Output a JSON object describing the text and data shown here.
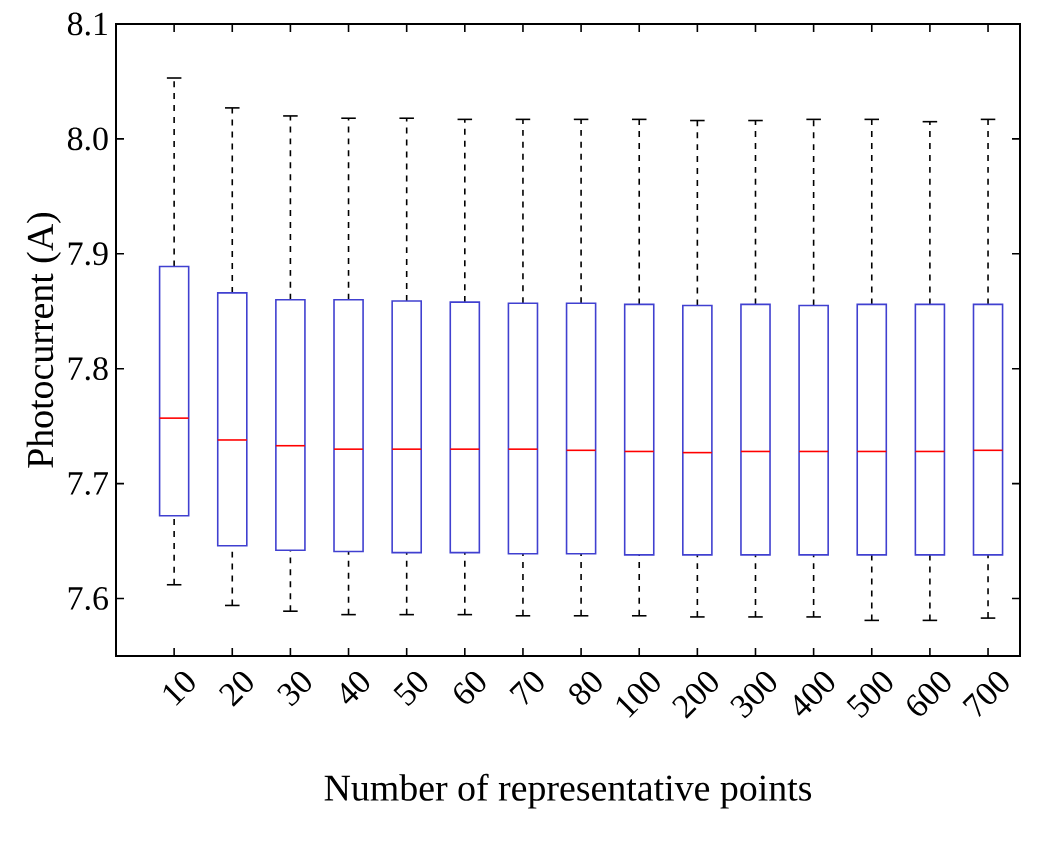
{
  "chart_data": {
    "type": "box",
    "xlabel": "Number of representative points",
    "ylabel": "Photocurrent (A)",
    "categories": [
      "10",
      "20",
      "30",
      "40",
      "50",
      "60",
      "70",
      "80",
      "100",
      "200",
      "300",
      "400",
      "500",
      "600",
      "700"
    ],
    "ylim": [
      7.55,
      8.1
    ],
    "yticks": [
      7.6,
      7.7,
      7.8,
      7.9,
      {
        "value": 8.0,
        "label": "8.0"
      },
      8.1
    ],
    "series": [
      {
        "color": "#4040d0",
        "boxes": [
          {
            "low": 7.612,
            "q1": 7.672,
            "median": 7.757,
            "q3": 7.889,
            "high": 8.053
          },
          {
            "low": 7.594,
            "q1": 7.646,
            "median": 7.738,
            "q3": 7.866,
            "high": 8.027
          },
          {
            "low": 7.589,
            "q1": 7.642,
            "median": 7.733,
            "q3": 7.86,
            "high": 8.02
          },
          {
            "low": 7.586,
            "q1": 7.641,
            "median": 7.73,
            "q3": 7.86,
            "high": 8.018
          },
          {
            "low": 7.586,
            "q1": 7.64,
            "median": 7.73,
            "q3": 7.859,
            "high": 8.018
          },
          {
            "low": 7.586,
            "q1": 7.64,
            "median": 7.73,
            "q3": 7.858,
            "high": 8.017
          },
          {
            "low": 7.585,
            "q1": 7.639,
            "median": 7.73,
            "q3": 7.857,
            "high": 8.017
          },
          {
            "low": 7.585,
            "q1": 7.639,
            "median": 7.729,
            "q3": 7.857,
            "high": 8.017
          },
          {
            "low": 7.585,
            "q1": 7.638,
            "median": 7.728,
            "q3": 7.856,
            "high": 8.017
          },
          {
            "low": 7.584,
            "q1": 7.638,
            "median": 7.727,
            "q3": 7.855,
            "high": 8.016
          },
          {
            "low": 7.584,
            "q1": 7.638,
            "median": 7.728,
            "q3": 7.856,
            "high": 8.016
          },
          {
            "low": 7.584,
            "q1": 7.638,
            "median": 7.728,
            "q3": 7.855,
            "high": 8.017
          },
          {
            "low": 7.581,
            "q1": 7.638,
            "median": 7.728,
            "q3": 7.856,
            "high": 8.017
          },
          {
            "low": 7.581,
            "q1": 7.638,
            "median": 7.728,
            "q3": 7.856,
            "high": 8.015
          },
          {
            "low": 7.583,
            "q1": 7.638,
            "median": 7.729,
            "q3": 7.856,
            "high": 8.017
          }
        ]
      }
    ]
  }
}
